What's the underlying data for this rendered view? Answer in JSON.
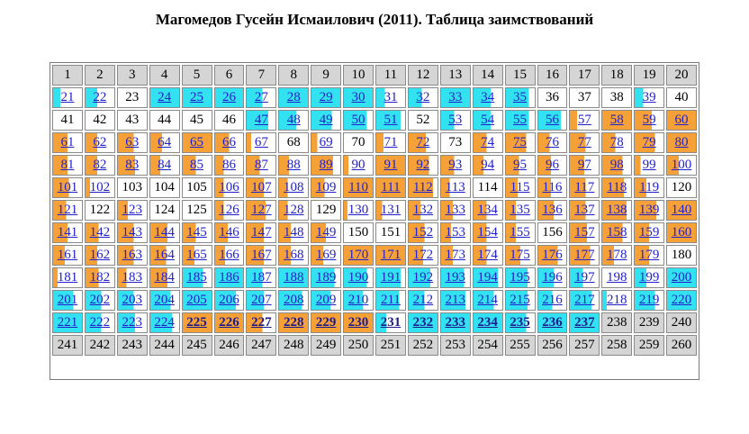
{
  "title": "Магомедов Гусейн Исмаилович (2011). Таблица заимствований",
  "colors": {
    "cyan": "#33E2F0",
    "orange": "#F6A038",
    "gray": "#D5D5D5",
    "white": "#FFFFFF",
    "link": "#2222CC",
    "link_bold": "#1B1B8E",
    "border": "#8A8A8A",
    "frame_border": "#7A7A7A",
    "text": "#000000"
  },
  "fill_colors": {
    "c": "#33E2F0",
    "o": "#F6A038",
    "g": "#D5D5D5",
    "w": "#FFFFFF"
  },
  "cell_format": "number|fill(colorKey+percent)|flags(L=link,B=bold)",
  "table": {
    "rows": [
      [
        "1|g|",
        "2|g|",
        "3|g|",
        "4|g|",
        "5|g|",
        "6|g|",
        "7|g|",
        "8|g|",
        "9|g|",
        "10|g|",
        "11|g|",
        "12|g|",
        "13|g|",
        "14|g|",
        "15|g|",
        "16|g|",
        "17|g|",
        "18|g|",
        "19|g|",
        "20|g|"
      ],
      [
        "21|c25|L",
        "22|c40|L",
        "23|w|",
        "24|c100|L",
        "25|c100|L",
        "26|c100|L",
        "27|c55|L",
        "28|c100|L",
        "29|c100|L",
        "30|c100|L",
        "31|c30|L",
        "32|c45|L",
        "33|c100|L",
        "34|c60|L",
        "35|c80|L",
        "36|w|",
        "37|w|",
        "38|w|",
        "39|c30|L",
        "40|w|"
      ],
      [
        "41|w|",
        "42|w|",
        "43|w|",
        "44|w|",
        "45|w|",
        "46|w|",
        "47|c75|L",
        "48|c60|L",
        "49|c70|L",
        "50|c80|L",
        "51|c85|L",
        "52|w|",
        "53|c45|L",
        "54|c60|L",
        "55|c80|L",
        "56|c80|L",
        "57|o25|L",
        "58|o100|L",
        "59|o60|L",
        "60|o100|L"
      ],
      [
        "61|o50|L",
        "62|o40|L",
        "63|o55|L",
        "64|o40|L",
        "65|o100|L",
        "66|o50|L",
        "67|o15|L",
        "68|w|",
        "69|o20|L",
        "70|w|",
        "71|o25|L",
        "72|o60|L",
        "73|w|",
        "74|o45|L",
        "75|o70|L",
        "76|o40|L",
        "77|o55|L",
        "78|o45|L",
        "79|o70|L",
        "80|o100|L"
      ],
      [
        "81|o50|L",
        "82|o40|L",
        "83|o60|L",
        "84|o35|L",
        "85|o45|L",
        "86|o30|L",
        "87|o45|L",
        "88|o35|L",
        "89|o75|L",
        "90|o15|L",
        "91|o100|L",
        "92|o70|L",
        "93|o45|L",
        "94|o35|L",
        "95|o45|L",
        "96|o45|L",
        "97|o50|L",
        "98|o70|L",
        "99|o20|L",
        "100|o40|L"
      ],
      [
        "101|o55|L",
        "102|o15|L",
        "103|w|",
        "104|w|",
        "105|w|",
        "106|o30|L",
        "107|o60|L",
        "108|o30|L",
        "109|o45|L",
        "110|o100|L",
        "111|o100|L",
        "112|o85|L",
        "113|o30|L",
        "114|w|",
        "115|o40|L",
        "116|o45|L",
        "117|o55|L",
        "118|o75|L",
        "119|o40|L",
        "120|w|"
      ],
      [
        "121|o45|L",
        "122|w|",
        "123|o35|L",
        "124|w|",
        "125|w|",
        "126|o30|L",
        "127|o65|L",
        "128|o30|L",
        "129|w|",
        "130|o12|L",
        "131|o20|L",
        "132|o40|L",
        "133|o40|L",
        "134|o45|L",
        "135|o35|L",
        "136|o55|L",
        "137|o55|L",
        "138|o85|L",
        "139|o75|L",
        "140|o100|L"
      ],
      [
        "141|o50|L",
        "142|o45|L",
        "143|o55|L",
        "144|o60|L",
        "145|o45|L",
        "146|o45|L",
        "147|o60|L",
        "148|o40|L",
        "149|o50|L",
        "150|w|",
        "151|w|",
        "152|o55|L",
        "153|o35|L",
        "154|o45|L",
        "155|o35|L",
        "156|w|",
        "157|o60|L",
        "158|o70|L",
        "159|o50|L",
        "160|o100|L"
      ],
      [
        "161|o40|L",
        "162|o40|L",
        "163|o55|L",
        "164|o55|L",
        "165|o40|L",
        "166|o35|L",
        "167|o60|L",
        "168|o40|L",
        "169|o40|L",
        "170|o100|L",
        "171|o100|L",
        "172|o50|L",
        "173|o40|L",
        "174|o45|L",
        "175|o50|L",
        "176|o70|L",
        "177|o70|L",
        "178|o40|L",
        "179|o50|L",
        "180|w|"
      ],
      [
        "181|o15|L",
        "182|o45|L",
        "183|o30|L",
        "184|o60|L",
        "185|c70|L",
        "186|c100|L",
        "187|c55|L",
        "188|c100|L",
        "189|c80|L",
        "190|c80|L",
        "191|c85|L",
        "192|c75|L",
        "193|c80|L",
        "194|c85|L",
        "195|c75|L",
        "196|c55|L",
        "197|c45|L",
        "198|w|L",
        "199|c40|L",
        "200|c100|L"
      ],
      [
        "201|c70|L",
        "202|c55|L",
        "203|c55|L",
        "204|c70|L",
        "205|c100|L",
        "206|c75|L",
        "207|c60|L",
        "208|c80|L",
        "209|c65|L",
        "210|c65|L",
        "211|c80|L",
        "212|c55|L",
        "213|c85|L",
        "214|c70|L",
        "215|c75|L",
        "216|c50|L",
        "217|c75|L",
        "218|c15|L",
        "219|c70|L",
        "220|c100|L"
      ],
      [
        "221|c100|L",
        "222|c55|L",
        "223|c60|L",
        "224|c75|L",
        "225|o100|LB",
        "226|o100|LB",
        "227|o55|LB",
        "228|o100|LB",
        "229|o100|LB",
        "230|o100|LB",
        "231|c35|LB",
        "232|c100|LB",
        "233|c100|LB",
        "234|c100|LB",
        "235|c70|LB",
        "236|c100|LB",
        "237|c100|LB",
        "238|g|",
        "239|g|",
        "240|g|"
      ],
      [
        "241|g|",
        "242|g|",
        "243|g|",
        "244|g|",
        "245|g|",
        "246|g|",
        "247|g|",
        "248|g|",
        "249|g|",
        "250|g|",
        "251|g|",
        "252|g|",
        "253|g|",
        "254|g|",
        "255|g|",
        "256|g|",
        "257|g|",
        "258|g|",
        "259|g|",
        "260|g|"
      ]
    ]
  }
}
